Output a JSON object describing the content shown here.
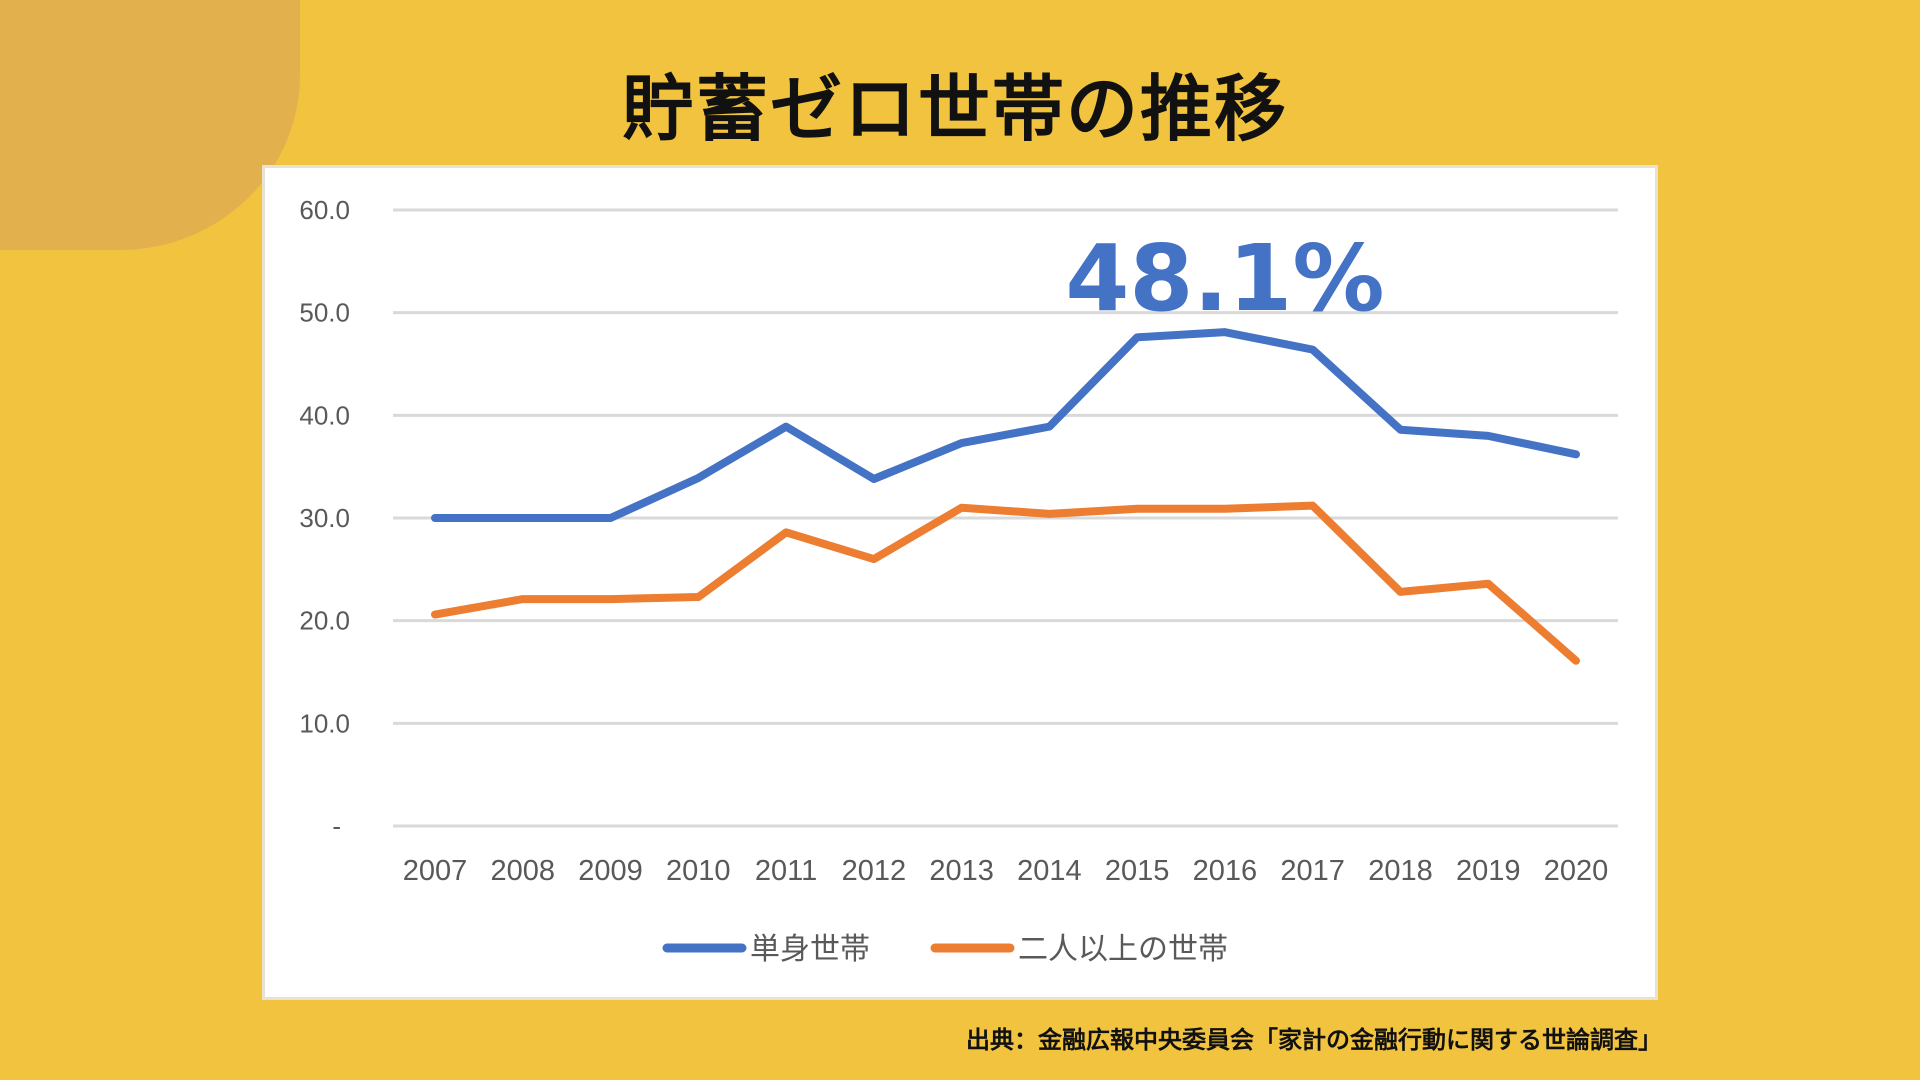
{
  "title": "貯蓄ゼロ世帯の推移",
  "source": "出典：金融広報中央委員会「家計の金融行動に関する世論調査」",
  "colors": {
    "background": "#F1C33F",
    "single": "#4472C4",
    "multi": "#ED7D31"
  },
  "chart_data": {
    "type": "line",
    "categories": [
      "2007",
      "2008",
      "2009",
      "2010",
      "2011",
      "2012",
      "2013",
      "2014",
      "2015",
      "2016",
      "2017",
      "2018",
      "2019",
      "2020"
    ],
    "ylim": [
      0,
      60
    ],
    "yticks": [
      "-",
      "10.0",
      "20.0",
      "30.0",
      "40.0",
      "50.0",
      "60.0"
    ],
    "grid": true,
    "legend": "bottom",
    "series": [
      {
        "name": "単身世帯",
        "color": "#4472C4",
        "values": [
          30.0,
          30.0,
          30.0,
          33.9,
          38.9,
          33.8,
          37.3,
          38.9,
          47.6,
          48.1,
          46.4,
          38.6,
          38.0,
          36.2
        ]
      },
      {
        "name": "二人以上の世帯",
        "color": "#ED7D31",
        "values": [
          20.6,
          22.1,
          22.1,
          22.3,
          28.6,
          26.0,
          31.0,
          30.4,
          30.9,
          30.9,
          31.2,
          22.8,
          23.6,
          16.1
        ]
      }
    ],
    "annotation": "48.1%"
  }
}
